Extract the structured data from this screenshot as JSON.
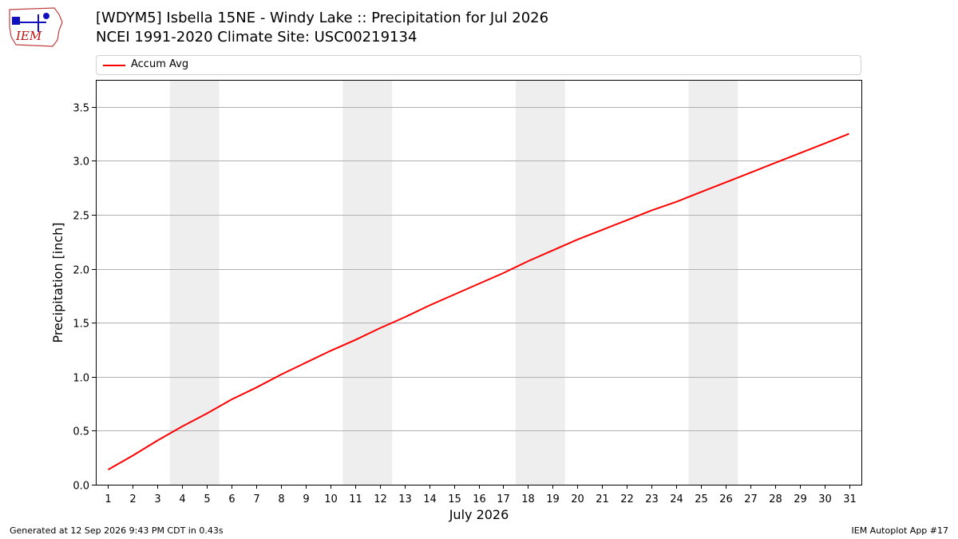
{
  "header": {
    "logo_text": "IEM",
    "title_line1": "[WDYM5] Isbella 15NE - Windy Lake :: Precipitation for Jul 2026",
    "title_line2": "NCEI 1991-2020 Climate Site: USC00219134"
  },
  "footer": {
    "generated": "Generated at 12 Sep 2026 9:43 PM CDT in 0.43s",
    "app": "IEM Autoplot App #17"
  },
  "colors": {
    "series": "#ff0000",
    "weekend_band": "#eeeeee",
    "grid": "#b0b0b0"
  },
  "chart_data": {
    "type": "line",
    "xlabel": "July 2026",
    "ylabel": "Precipitation [inch]",
    "xlim": [
      0.5,
      31.5
    ],
    "ylim": [
      0,
      3.75
    ],
    "x": [
      1,
      2,
      3,
      4,
      5,
      6,
      7,
      8,
      9,
      10,
      11,
      12,
      13,
      14,
      15,
      16,
      17,
      18,
      19,
      20,
      21,
      22,
      23,
      24,
      25,
      26,
      27,
      28,
      29,
      30,
      31
    ],
    "x_tick_labels": [
      "1",
      "2",
      "3",
      "4",
      "5",
      "6",
      "7",
      "8",
      "9",
      "10",
      "11",
      "12",
      "13",
      "14",
      "15",
      "16",
      "17",
      "18",
      "19",
      "20",
      "21",
      "22",
      "23",
      "24",
      "25",
      "26",
      "27",
      "28",
      "29",
      "30",
      "31"
    ],
    "y_ticks": [
      0.0,
      0.5,
      1.0,
      1.5,
      2.0,
      2.5,
      3.0,
      3.5
    ],
    "y_tick_labels": [
      "0.0",
      "0.5",
      "1.0",
      "1.5",
      "2.0",
      "2.5",
      "3.0",
      "3.5"
    ],
    "weekend_bands": [
      [
        4,
        5
      ],
      [
        11,
        12
      ],
      [
        18,
        19
      ],
      [
        25,
        26
      ]
    ],
    "grid": "y-major",
    "legend": "top, above plot",
    "series": [
      {
        "name": "Accum Avg",
        "values": [
          0.14,
          0.27,
          0.41,
          0.54,
          0.66,
          0.79,
          0.9,
          1.02,
          1.13,
          1.24,
          1.34,
          1.45,
          1.55,
          1.66,
          1.76,
          1.86,
          1.96,
          2.07,
          2.17,
          2.27,
          2.36,
          2.45,
          2.54,
          2.62,
          2.71,
          2.8,
          2.89,
          2.98,
          3.07,
          3.16,
          3.25
        ]
      }
    ]
  }
}
